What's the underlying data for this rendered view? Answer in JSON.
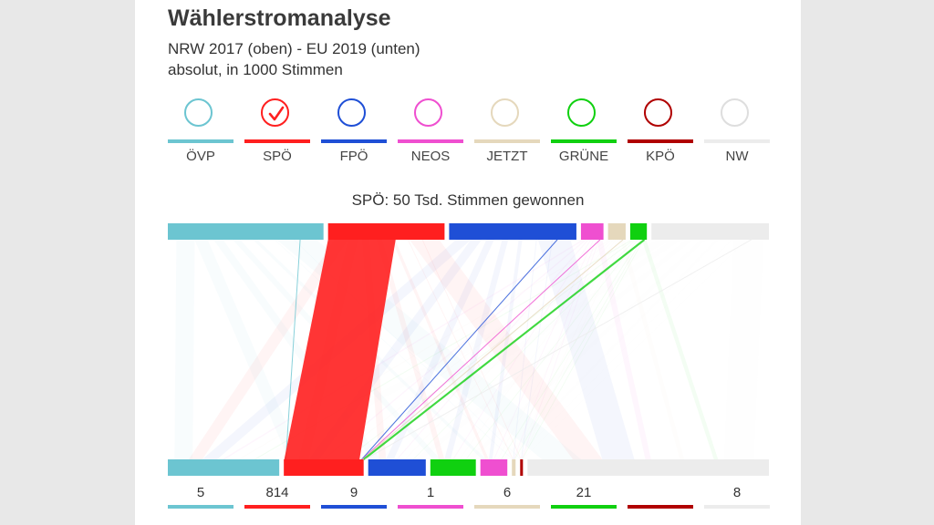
{
  "header": {
    "title": "Wählerstromanalyse",
    "subtitle": "NRW 2017 (oben) - EU 2019 (unten)",
    "unit": "absolut, in 1000 Stimmen"
  },
  "parties": [
    {
      "label": "ÖVP",
      "color": "#6cc5d1",
      "selected": false
    },
    {
      "label": "SPÖ",
      "color": "#ff1f1f",
      "selected": true
    },
    {
      "label": "FPÖ",
      "color": "#1f4fd6",
      "selected": false
    },
    {
      "label": "NEOS",
      "color": "#ef4fd0",
      "selected": false
    },
    {
      "label": "JETZT",
      "color": "#e5d8bc",
      "selected": false
    },
    {
      "label": "GRÜNE",
      "color": "#10d010",
      "selected": false
    },
    {
      "label": "KPÖ",
      "color": "#b00000",
      "selected": false
    },
    {
      "label": "NW",
      "color": "#ececec",
      "selected": false
    }
  ],
  "status_text": "SPÖ: 50 Tsd. Stimmen gewonnen",
  "bottom_values": [
    "5",
    "814",
    "9",
    "1",
    "6",
    "21",
    "",
    "8"
  ],
  "chart_data": {
    "type": "sankey",
    "title": "Wählerstromanalyse",
    "subtitle": "NRW 2017 (oben) - EU 2019 (unten)",
    "unit": "absolut, in 1000 Stimmen",
    "selected_party": "SPÖ",
    "annotation": "SPÖ: 50 Tsd. Stimmen gewonnen",
    "top_parties": [
      "ÖVP",
      "SPÖ",
      "FPÖ",
      "NEOS",
      "JETZT",
      "GRÜNE",
      "NW"
    ],
    "top_values": [
      1590,
      1190,
      1300,
      230,
      180,
      170,
      1200
    ],
    "bottom_parties": [
      "ÖVP",
      "SPÖ",
      "FPÖ",
      "GRÜNE",
      "NEOS",
      "JETZT",
      "KPÖ",
      "NW"
    ],
    "bottom_values": [
      1200,
      860,
      620,
      490,
      290,
      40,
      30,
      2600
    ],
    "flows_to_SPÖ": [
      {
        "from": "ÖVP",
        "value": 5
      },
      {
        "from": "SPÖ",
        "value": 814
      },
      {
        "from": "FPÖ",
        "value": 9
      },
      {
        "from": "NEOS",
        "value": 1
      },
      {
        "from": "JETZT",
        "value": 6
      },
      {
        "from": "GRÜNE",
        "value": 21
      },
      {
        "from": "NW",
        "value": 8
      }
    ]
  }
}
